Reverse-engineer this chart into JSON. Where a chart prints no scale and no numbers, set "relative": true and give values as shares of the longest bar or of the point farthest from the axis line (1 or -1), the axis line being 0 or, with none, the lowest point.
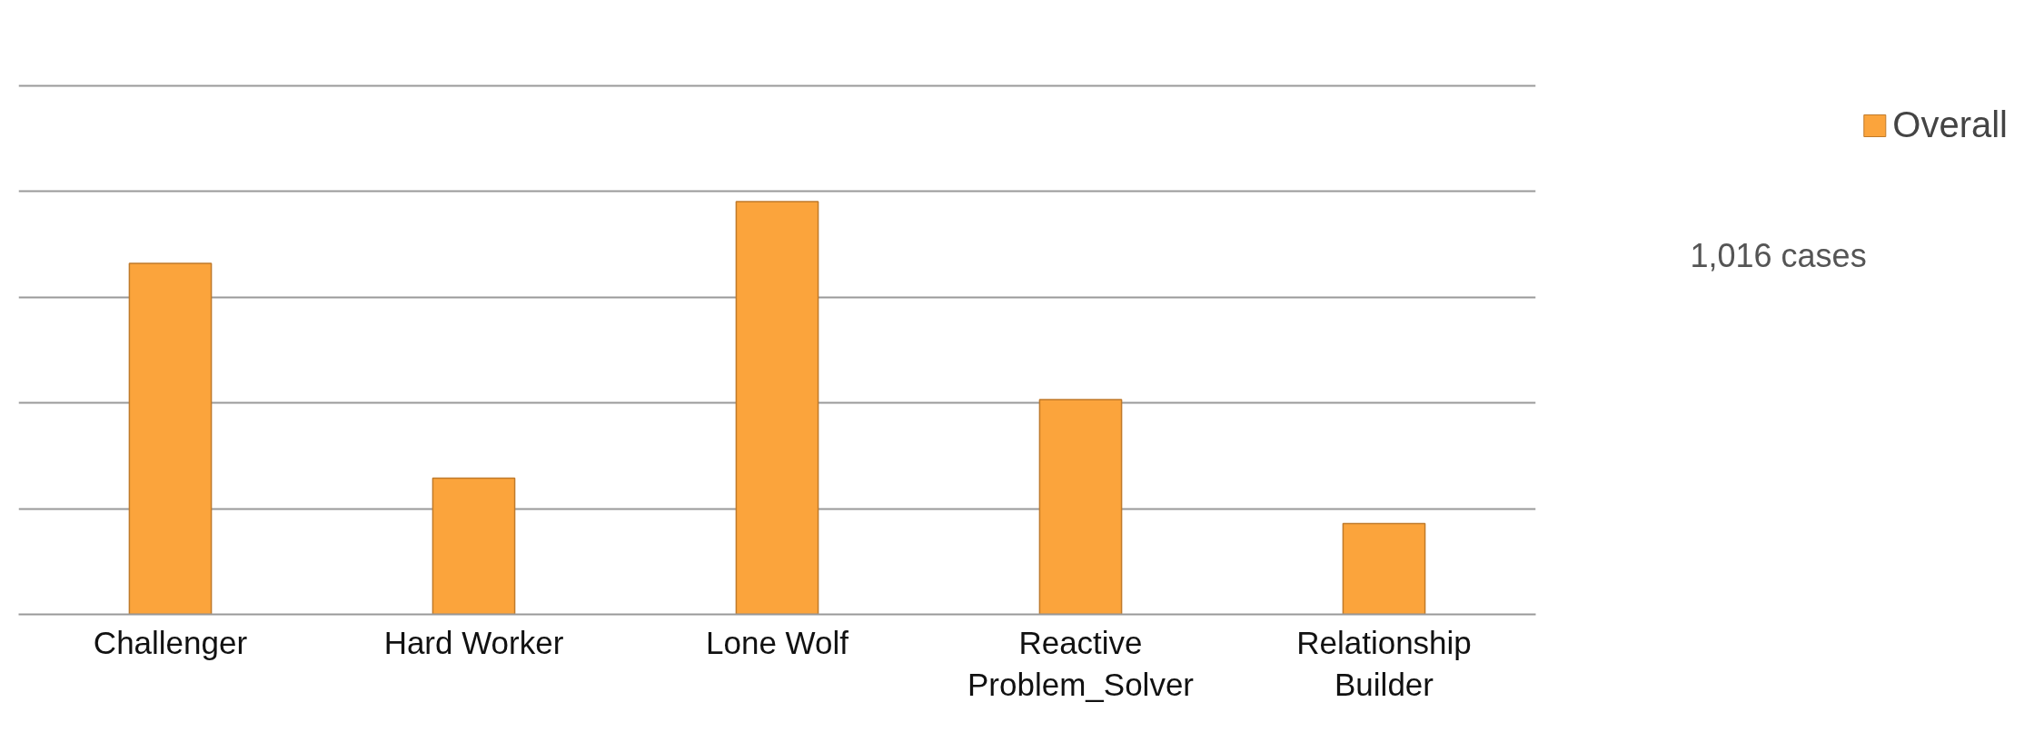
{
  "chart_data": {
    "type": "bar",
    "relative": true,
    "categories": [
      "Challenger",
      "Hard Worker",
      "Lone Wolf",
      "Reactive Problem_Solver",
      "Relationship Builder"
    ],
    "series": [
      {
        "name": "Overall",
        "color": "#fba43c",
        "values": [
          0.85,
          0.33,
          1,
          0.52,
          0.22
        ]
      }
    ],
    "annotations": [
      "1,016 cases"
    ],
    "grid": "y",
    "legend": "top right"
  }
}
